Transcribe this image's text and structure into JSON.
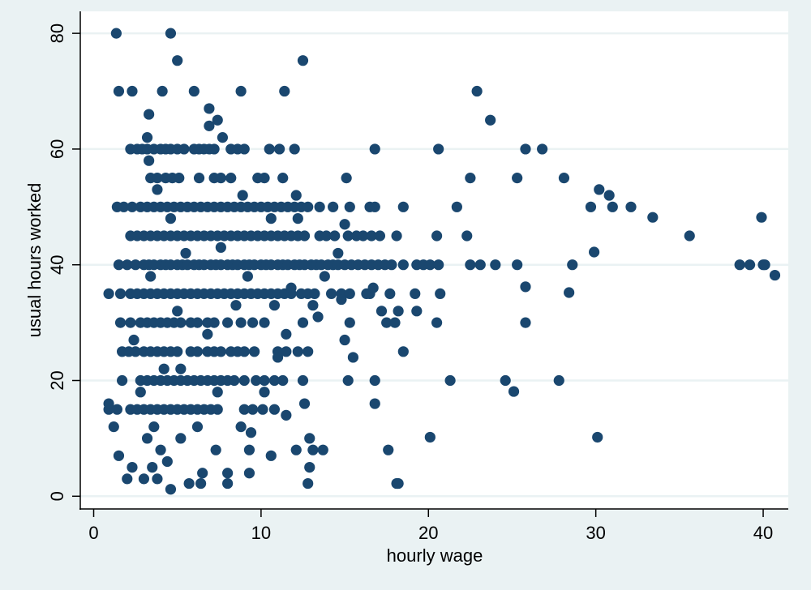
{
  "chart_data": {
    "type": "scatter",
    "title": "",
    "xlabel": "hourly wage",
    "ylabel": "usual hours worked",
    "xlim": [
      -0.8,
      41.5
    ],
    "ylim": [
      -2.2,
      83.8
    ],
    "xticks": [
      0,
      10,
      20,
      30,
      40
    ],
    "yticks": [
      0,
      20,
      40,
      60,
      80
    ],
    "grid": "horizontal at y ticks",
    "colors": {
      "marker": "#1a476f",
      "background": "#eaf2f3",
      "plot_background": "#ffffff",
      "grid": "#eaf2f3"
    },
    "points": [
      [
        1.35,
        80
      ],
      [
        4.6,
        80
      ],
      [
        5.0,
        75.3
      ],
      [
        12.5,
        75.3
      ],
      [
        1.5,
        70
      ],
      [
        2.3,
        70
      ],
      [
        4.1,
        70
      ],
      [
        6.0,
        70
      ],
      [
        8.8,
        70
      ],
      [
        11.4,
        70
      ],
      [
        22.9,
        70
      ],
      [
        23.7,
        65
      ],
      [
        3.3,
        66
      ],
      [
        6.9,
        67
      ],
      [
        7.4,
        65
      ],
      [
        7.7,
        62
      ],
      [
        3.2,
        62
      ],
      [
        6.9,
        64
      ],
      [
        1.5,
        40
      ],
      [
        2.0,
        40
      ],
      [
        2.5,
        40
      ],
      [
        3,
        40
      ],
      [
        3.3,
        40
      ],
      [
        3.6,
        40
      ],
      [
        4,
        40
      ],
      [
        4.3,
        40
      ],
      [
        4.6,
        40
      ],
      [
        5,
        40
      ],
      [
        5.3,
        40
      ],
      [
        5.6,
        40
      ],
      [
        6,
        40
      ],
      [
        6.3,
        40
      ],
      [
        6.6,
        40
      ],
      [
        7,
        40
      ],
      [
        7.3,
        40
      ],
      [
        7.6,
        40
      ],
      [
        8,
        40
      ],
      [
        8.3,
        40
      ],
      [
        8.6,
        40
      ],
      [
        9,
        40
      ],
      [
        9.3,
        40
      ],
      [
        9.6,
        40
      ],
      [
        10,
        40
      ],
      [
        10.3,
        40
      ],
      [
        10.6,
        40
      ],
      [
        11,
        40
      ],
      [
        11.3,
        40
      ],
      [
        11.6,
        40
      ],
      [
        12,
        40
      ],
      [
        12.3,
        40
      ],
      [
        12.6,
        40
      ],
      [
        13,
        40
      ],
      [
        13.3,
        40
      ],
      [
        13.6,
        40
      ],
      [
        14,
        40
      ],
      [
        14.3,
        40
      ],
      [
        14.6,
        40
      ],
      [
        15,
        40
      ],
      [
        15.4,
        40
      ],
      [
        15.8,
        40
      ],
      [
        16.2,
        40
      ],
      [
        16.6,
        40
      ],
      [
        17,
        40
      ],
      [
        17.4,
        40
      ],
      [
        17.8,
        40
      ],
      [
        18.5,
        40
      ],
      [
        19.3,
        40
      ],
      [
        19.7,
        40
      ],
      [
        20.1,
        40
      ],
      [
        20.6,
        40
      ],
      [
        22.5,
        40
      ],
      [
        23.1,
        40
      ],
      [
        24,
        40
      ],
      [
        25.3,
        40
      ],
      [
        28.6,
        40
      ],
      [
        38.6,
        40
      ],
      [
        39.2,
        40
      ],
      [
        40,
        40
      ],
      [
        40.1,
        40
      ],
      [
        0.9,
        35
      ],
      [
        1.6,
        35
      ],
      [
        2.2,
        35
      ],
      [
        2.6,
        35
      ],
      [
        3,
        35
      ],
      [
        3.4,
        35
      ],
      [
        3.8,
        35
      ],
      [
        4.2,
        35
      ],
      [
        4.6,
        35
      ],
      [
        5,
        35
      ],
      [
        5.4,
        35
      ],
      [
        5.8,
        35
      ],
      [
        6.2,
        35
      ],
      [
        6.6,
        35
      ],
      [
        7,
        35
      ],
      [
        7.4,
        35
      ],
      [
        7.8,
        35
      ],
      [
        8.2,
        35
      ],
      [
        8.6,
        35
      ],
      [
        9,
        35
      ],
      [
        9.4,
        35
      ],
      [
        9.8,
        35
      ],
      [
        10.2,
        35
      ],
      [
        10.6,
        35
      ],
      [
        11,
        35
      ],
      [
        11.4,
        35
      ],
      [
        11.8,
        35
      ],
      [
        12.4,
        35
      ],
      [
        12.8,
        35
      ],
      [
        13.2,
        35
      ],
      [
        14.2,
        35
      ],
      [
        14.8,
        35
      ],
      [
        15.3,
        35
      ],
      [
        16.3,
        35
      ],
      [
        16.5,
        35
      ],
      [
        17.7,
        35
      ],
      [
        19.2,
        35
      ],
      [
        20.7,
        35
      ],
      [
        2.2,
        45
      ],
      [
        2.6,
        45
      ],
      [
        3,
        45
      ],
      [
        3.4,
        45
      ],
      [
        3.8,
        45
      ],
      [
        4.2,
        45
      ],
      [
        4.6,
        45
      ],
      [
        5,
        45
      ],
      [
        5.4,
        45
      ],
      [
        5.8,
        45
      ],
      [
        6.2,
        45
      ],
      [
        6.6,
        45
      ],
      [
        7,
        45
      ],
      [
        7.4,
        45
      ],
      [
        7.8,
        45
      ],
      [
        8.2,
        45
      ],
      [
        8.6,
        45
      ],
      [
        9,
        45
      ],
      [
        9.4,
        45
      ],
      [
        9.8,
        45
      ],
      [
        10.2,
        45
      ],
      [
        10.6,
        45
      ],
      [
        11,
        45
      ],
      [
        11.4,
        45
      ],
      [
        11.8,
        45
      ],
      [
        12.2,
        45
      ],
      [
        12.6,
        45
      ],
      [
        13.5,
        45
      ],
      [
        13.9,
        45
      ],
      [
        14.4,
        45
      ],
      [
        15.2,
        45
      ],
      [
        15.7,
        45
      ],
      [
        16.1,
        45
      ],
      [
        16.6,
        45
      ],
      [
        17.1,
        45
      ],
      [
        18.1,
        45
      ],
      [
        20.5,
        45
      ],
      [
        22.3,
        45
      ],
      [
        35.6,
        45
      ],
      [
        1.4,
        50
      ],
      [
        1.8,
        50
      ],
      [
        2.3,
        50
      ],
      [
        2.8,
        50
      ],
      [
        3.2,
        50
      ],
      [
        3.6,
        50
      ],
      [
        4,
        50
      ],
      [
        4.4,
        50
      ],
      [
        4.8,
        50
      ],
      [
        5.2,
        50
      ],
      [
        5.6,
        50
      ],
      [
        6,
        50
      ],
      [
        6.4,
        50
      ],
      [
        6.8,
        50
      ],
      [
        7.2,
        50
      ],
      [
        7.6,
        50
      ],
      [
        8,
        50
      ],
      [
        8.4,
        50
      ],
      [
        8.8,
        50
      ],
      [
        9.2,
        50
      ],
      [
        9.6,
        50
      ],
      [
        10,
        50
      ],
      [
        10.4,
        50
      ],
      [
        10.8,
        50
      ],
      [
        11.2,
        50
      ],
      [
        11.6,
        50
      ],
      [
        12,
        50
      ],
      [
        12.4,
        50
      ],
      [
        12.8,
        50
      ],
      [
        13.5,
        50
      ],
      [
        14.3,
        50
      ],
      [
        15.3,
        50
      ],
      [
        16.5,
        50
      ],
      [
        16.8,
        50
      ],
      [
        18.5,
        50
      ],
      [
        21.7,
        50
      ],
      [
        29.7,
        50
      ],
      [
        31,
        50
      ],
      [
        32.1,
        50
      ],
      [
        2.2,
        60
      ],
      [
        2.6,
        60
      ],
      [
        2.9,
        60
      ],
      [
        3.2,
        60
      ],
      [
        3.6,
        60
      ],
      [
        4,
        60
      ],
      [
        4.3,
        60
      ],
      [
        4.6,
        60
      ],
      [
        5,
        60
      ],
      [
        5.4,
        60
      ],
      [
        6,
        60
      ],
      [
        6.3,
        60
      ],
      [
        6.6,
        60
      ],
      [
        6.9,
        60
      ],
      [
        7.2,
        60
      ],
      [
        8.2,
        60
      ],
      [
        8.6,
        60
      ],
      [
        9,
        60
      ],
      [
        10.5,
        60
      ],
      [
        11.1,
        60
      ],
      [
        12,
        60
      ],
      [
        16.8,
        60
      ],
      [
        20.6,
        60
      ],
      [
        25.8,
        60
      ],
      [
        26.8,
        60
      ],
      [
        3.4,
        55
      ],
      [
        3.8,
        55
      ],
      [
        4.3,
        55
      ],
      [
        4.7,
        55
      ],
      [
        5.1,
        55
      ],
      [
        6.3,
        55
      ],
      [
        7.2,
        55
      ],
      [
        7.6,
        55
      ],
      [
        8.2,
        55
      ],
      [
        9.8,
        55
      ],
      [
        10.2,
        55
      ],
      [
        11.3,
        55
      ],
      [
        15.1,
        55
      ],
      [
        22.5,
        55
      ],
      [
        25.3,
        55
      ],
      [
        28.1,
        55
      ],
      [
        1.6,
        30
      ],
      [
        2.2,
        30
      ],
      [
        2.8,
        30
      ],
      [
        3.2,
        30
      ],
      [
        3.6,
        30
      ],
      [
        4,
        30
      ],
      [
        4.4,
        30
      ],
      [
        4.8,
        30
      ],
      [
        5.2,
        30
      ],
      [
        5.8,
        30
      ],
      [
        6.2,
        30
      ],
      [
        6.8,
        30
      ],
      [
        7.2,
        30
      ],
      [
        8,
        30
      ],
      [
        8.8,
        30
      ],
      [
        9.5,
        30
      ],
      [
        10.2,
        30
      ],
      [
        12.5,
        30
      ],
      [
        15.3,
        30
      ],
      [
        17.5,
        30
      ],
      [
        18,
        30
      ],
      [
        20.5,
        30
      ],
      [
        25.8,
        30
      ],
      [
        1.7,
        25
      ],
      [
        2.1,
        25
      ],
      [
        2.5,
        25
      ],
      [
        3,
        25
      ],
      [
        3.4,
        25
      ],
      [
        3.8,
        25
      ],
      [
        4.2,
        25
      ],
      [
        4.6,
        25
      ],
      [
        5,
        25
      ],
      [
        5.8,
        25
      ],
      [
        6.2,
        25
      ],
      [
        6.8,
        25
      ],
      [
        7.2,
        25
      ],
      [
        7.6,
        25
      ],
      [
        8.2,
        25
      ],
      [
        8.6,
        25
      ],
      [
        9,
        25
      ],
      [
        9.6,
        25
      ],
      [
        11,
        25
      ],
      [
        11.5,
        25
      ],
      [
        12.2,
        25
      ],
      [
        12.8,
        25
      ],
      [
        18.5,
        25
      ],
      [
        1.7,
        20
      ],
      [
        2.8,
        20
      ],
      [
        3.2,
        20
      ],
      [
        3.6,
        20
      ],
      [
        4,
        20
      ],
      [
        4.4,
        20
      ],
      [
        4.8,
        20
      ],
      [
        5.2,
        20
      ],
      [
        5.6,
        20
      ],
      [
        6,
        20
      ],
      [
        6.4,
        20
      ],
      [
        6.8,
        20
      ],
      [
        7.2,
        20
      ],
      [
        7.6,
        20
      ],
      [
        8,
        20
      ],
      [
        8.4,
        20
      ],
      [
        9,
        20
      ],
      [
        9.7,
        20
      ],
      [
        10.2,
        20
      ],
      [
        10.8,
        20
      ],
      [
        11.3,
        20
      ],
      [
        12.5,
        20
      ],
      [
        15.2,
        20
      ],
      [
        16.8,
        20
      ],
      [
        21.3,
        20
      ],
      [
        24.6,
        20
      ],
      [
        27.8,
        20
      ],
      [
        0.9,
        15
      ],
      [
        1.4,
        15
      ],
      [
        2.2,
        15
      ],
      [
        2.6,
        15
      ],
      [
        3,
        15
      ],
      [
        3.4,
        15
      ],
      [
        3.8,
        15
      ],
      [
        4.2,
        15
      ],
      [
        4.6,
        15
      ],
      [
        5,
        15
      ],
      [
        5.4,
        15
      ],
      [
        5.8,
        15
      ],
      [
        6.2,
        15
      ],
      [
        6.6,
        15
      ],
      [
        7,
        15
      ],
      [
        7.4,
        15
      ],
      [
        9,
        15
      ],
      [
        9.5,
        15
      ],
      [
        10.1,
        15
      ],
      [
        10.8,
        15
      ],
      [
        1.5,
        7
      ],
      [
        1.2,
        12
      ],
      [
        0.9,
        16
      ],
      [
        2.0,
        3
      ],
      [
        2.3,
        5
      ],
      [
        3,
        3
      ],
      [
        3.5,
        5
      ],
      [
        4,
        8
      ],
      [
        4.6,
        1.2
      ],
      [
        5.7,
        2.2
      ],
      [
        6.4,
        2.2
      ],
      [
        8,
        2.2
      ],
      [
        8,
        4
      ],
      [
        6.5,
        4
      ],
      [
        7.3,
        8
      ],
      [
        8.8,
        12
      ],
      [
        9.4,
        11
      ],
      [
        9.3,
        8
      ],
      [
        9.3,
        4
      ],
      [
        10.6,
        7
      ],
      [
        12.1,
        8
      ],
      [
        12.8,
        2.2
      ],
      [
        12.9,
        5
      ],
      [
        12.9,
        10
      ],
      [
        13.1,
        8
      ],
      [
        13.7,
        8
      ],
      [
        12.6,
        16
      ],
      [
        11.5,
        14
      ],
      [
        10.2,
        18
      ],
      [
        11,
        24
      ],
      [
        11.5,
        28
      ],
      [
        10.8,
        33
      ],
      [
        11.8,
        36
      ],
      [
        13.1,
        33
      ],
      [
        13.4,
        31
      ],
      [
        14.8,
        34
      ],
      [
        15,
        27
      ],
      [
        15.5,
        24
      ],
      [
        17.6,
        8
      ],
      [
        18.2,
        2.2
      ],
      [
        16.8,
        16
      ],
      [
        17.2,
        32
      ],
      [
        18.2,
        32
      ],
      [
        19.3,
        32
      ],
      [
        3.2,
        10
      ],
      [
        3.6,
        12
      ],
      [
        4.2,
        22
      ],
      [
        5.2,
        22
      ],
      [
        6.8,
        28
      ],
      [
        2.4,
        27
      ],
      [
        3.8,
        53
      ],
      [
        8.9,
        52
      ],
      [
        4.6,
        48
      ],
      [
        3.3,
        58
      ],
      [
        12.1,
        52
      ],
      [
        30.2,
        53
      ],
      [
        30.8,
        52
      ],
      [
        33.4,
        48.2
      ],
      [
        39.9,
        48.2
      ],
      [
        29.9,
        42.2
      ],
      [
        40.7,
        38.2
      ],
      [
        25.8,
        36.2
      ],
      [
        28.4,
        35.2
      ],
      [
        25.1,
        18.1
      ],
      [
        20.1,
        10.2
      ],
      [
        30.1,
        10.2
      ],
      [
        18.1,
        2.2
      ],
      [
        15,
        47
      ],
      [
        16.7,
        36
      ],
      [
        5.2,
        10
      ],
      [
        4.4,
        6
      ],
      [
        3.8,
        3
      ],
      [
        2.8,
        18
      ],
      [
        3.4,
        38
      ],
      [
        5.5,
        42
      ],
      [
        7.6,
        43
      ],
      [
        9.2,
        38
      ],
      [
        10.6,
        48
      ],
      [
        12.2,
        48
      ],
      [
        13.8,
        38
      ],
      [
        14.6,
        42
      ],
      [
        6.2,
        12
      ],
      [
        7.4,
        18
      ],
      [
        5,
        32
      ],
      [
        8.5,
        33
      ]
    ]
  }
}
